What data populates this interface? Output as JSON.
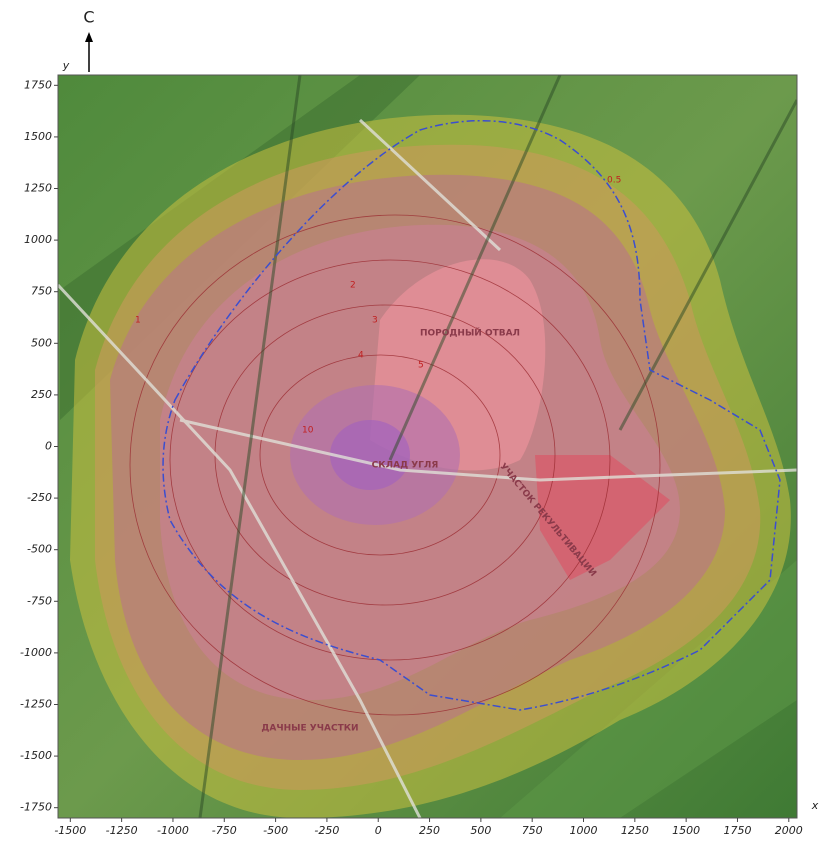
{
  "map": {
    "north_label": "С",
    "x_axis_label": "x",
    "y_axis_label": "y",
    "xlim": [
      -1560,
      2040
    ],
    "ylim": [
      -1800,
      1800
    ],
    "xticks": [
      -1500,
      -1250,
      -1000,
      -750,
      -500,
      -250,
      0,
      250,
      500,
      750,
      1000,
      1250,
      1500,
      1750,
      2000
    ],
    "yticks": [
      1750,
      1500,
      1250,
      1000,
      750,
      500,
      250,
      0,
      -250,
      -500,
      -750,
      -1000,
      -1250,
      -1500,
      -1750
    ],
    "area_labels": [
      "ПОРОДНЫЙ ОТВАЛ",
      "СКЛАД УГЛЯ",
      "УЧАСТОК РЕКУЛЬТИВАЦИИ",
      "ДАЧНЫЕ УЧАСТКИ"
    ],
    "contour_labels": [
      "0.5",
      "1",
      "2",
      "3",
      "4",
      "5",
      "10"
    ]
  }
}
